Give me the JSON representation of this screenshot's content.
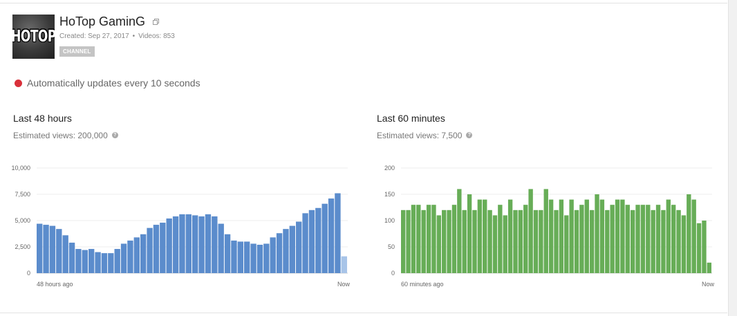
{
  "channel": {
    "name": "HoTop GaminG",
    "thumb_text": "HOTOP",
    "created": "Created: Sep 27, 2017",
    "videos": "Videos: 853",
    "badge": "CHANNEL"
  },
  "live_status": {
    "text": "Automatically updates every 10 seconds",
    "color": "#d9303a"
  },
  "left_panel": {
    "title": "Last 48 hours",
    "subtitle": "Estimated views: 200,000",
    "x_start_label": "48 hours ago",
    "x_end_label": "Now"
  },
  "right_panel": {
    "title": "Last 60 minutes",
    "subtitle": "Estimated views: 7,500",
    "x_start_label": "60 minutes ago",
    "x_end_label": "Now"
  },
  "chart_data": [
    {
      "type": "bar",
      "y_ticks": [
        0,
        2500,
        5000,
        7500,
        10000
      ],
      "y_tick_labels": [
        "0",
        "2,500",
        "5,000",
        "7,500",
        "10,000"
      ],
      "ylim": [
        0,
        10000
      ],
      "grid": true,
      "color": "#5b8ccc",
      "partial_color": "#a8c4e8",
      "values": [
        4700,
        4600,
        4500,
        4200,
        3600,
        2900,
        2300,
        2200,
        2300,
        2000,
        1900,
        1900,
        2300,
        2800,
        3100,
        3400,
        3700,
        4300,
        4600,
        4800,
        5200,
        5400,
        5600,
        5600,
        5500,
        5400,
        5600,
        5400,
        4700,
        3700,
        3100,
        3000,
        3000,
        2800,
        2700,
        2800,
        3400,
        3800,
        4200,
        4500,
        4900,
        5700,
        6000,
        6200,
        6600,
        7100,
        7600,
        1600
      ],
      "partial_last": true
    },
    {
      "type": "bar",
      "y_ticks": [
        0,
        50,
        100,
        150,
        200
      ],
      "y_tick_labels": [
        "0",
        "50",
        "100",
        "150",
        "200"
      ],
      "ylim": [
        0,
        200
      ],
      "grid": true,
      "color": "#67ad57",
      "values": [
        120,
        120,
        130,
        130,
        120,
        130,
        130,
        110,
        120,
        120,
        130,
        160,
        120,
        150,
        120,
        140,
        140,
        120,
        110,
        130,
        110,
        140,
        120,
        120,
        130,
        160,
        120,
        120,
        160,
        140,
        120,
        140,
        110,
        140,
        120,
        130,
        140,
        120,
        150,
        140,
        120,
        130,
        140,
        140,
        130,
        120,
        130,
        130,
        130,
        120,
        130,
        120,
        140,
        130,
        120,
        110,
        150,
        140,
        95,
        100,
        20
      ],
      "partial_last": false
    }
  ]
}
